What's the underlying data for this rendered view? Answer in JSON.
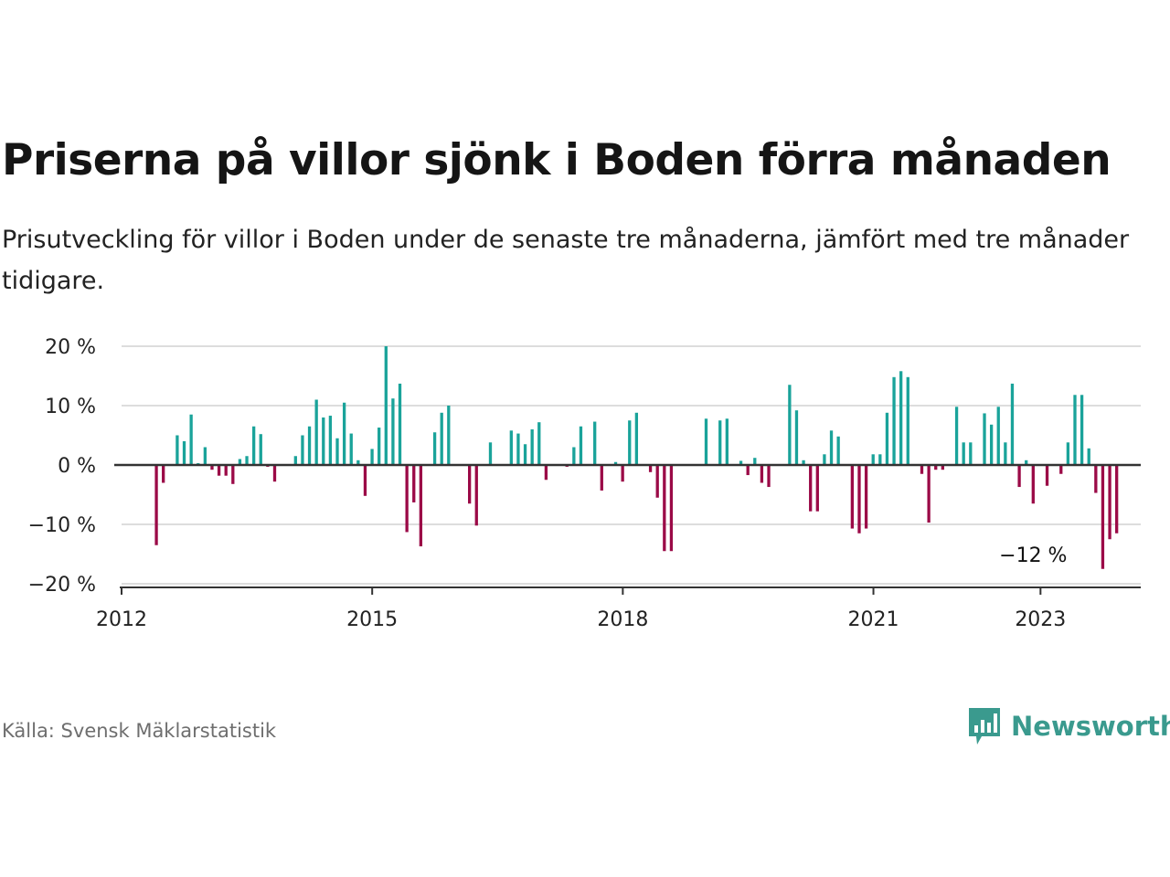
{
  "header": {
    "title": "Priserna på villor sjönk i Boden förra månaden",
    "subtitle": "Prisutveckling för villor i Boden under de senaste tre månaderna, jämfört med tre månader tidigare."
  },
  "footer": {
    "source": "Källa: Svensk Mäklarstatistik",
    "logo_text": "Newsworthy",
    "logo_icon": "bar-chart-speech-bubble-icon"
  },
  "colors": {
    "positive": "#1aa39a",
    "negative": "#9b0a47",
    "grid": "#dddddd",
    "zero_line": "#333333",
    "text": "#222222"
  },
  "chart_data": {
    "type": "bar",
    "title": "Priserna på villor sjönk i Boden förra månaden",
    "xlabel": "",
    "ylabel": "",
    "ylim": [
      -20,
      20
    ],
    "yticks": [
      20,
      10,
      0,
      -10,
      -20
    ],
    "ytick_labels": [
      "20 %",
      "10 %",
      "0 %",
      "−10 %",
      "−20 %"
    ],
    "xticks": [
      2012,
      2015,
      2018,
      2021,
      2023
    ],
    "xtick_labels": [
      "2012",
      "2015",
      "2018",
      "2021",
      "2023"
    ],
    "xlim": [
      2012.0,
      2024.2
    ],
    "start": 2012.0,
    "step": 0.0833,
    "values": [
      0,
      0,
      0,
      0,
      0,
      -13.5,
      -3,
      0,
      5,
      4,
      8.5,
      0.3,
      3,
      -0.8,
      -1.8,
      -1.8,
      -3.2,
      1,
      1.5,
      6.5,
      5.2,
      -0.3,
      -2.8,
      0,
      0,
      1.5,
      5,
      6.5,
      11,
      8,
      8.3,
      4.5,
      10.5,
      5.3,
      0.8,
      -5.2,
      2.7,
      6.3,
      20,
      11.2,
      13.7,
      -11.3,
      -6.3,
      -13.7,
      0,
      5.5,
      8.8,
      10,
      0,
      0,
      -6.5,
      -10.2,
      0,
      3.8,
      0,
      0,
      5.8,
      5.3,
      3.5,
      6,
      7.2,
      -2.5,
      0,
      0,
      -0.3,
      3,
      6.5,
      0,
      7.3,
      -4.3,
      0,
      0.5,
      -2.8,
      7.5,
      8.8,
      0,
      -1.2,
      -5.5,
      -14.5,
      -14.5,
      0,
      0,
      0,
      0,
      7.8,
      0,
      7.5,
      7.8,
      0,
      0.7,
      -1.7,
      1.2,
      -3,
      -3.7,
      0,
      0,
      13.5,
      9.2,
      0.8,
      -7.8,
      -7.8,
      1.8,
      5.8,
      4.8,
      0,
      -10.7,
      -11.5,
      -10.7,
      1.8,
      1.8,
      8.8,
      14.8,
      15.8,
      14.8,
      0,
      -1.5,
      -9.7,
      -0.8,
      -0.8,
      0,
      9.8,
      3.8,
      3.8,
      0,
      8.7,
      6.8,
      9.8,
      3.8,
      13.7,
      -3.7,
      0.8,
      -6.5,
      0,
      -3.5,
      0,
      -1.5,
      3.8,
      11.8,
      11.8,
      2.8,
      -4.7,
      -17.5,
      -12.5,
      -11.5
    ],
    "annotation": {
      "text": "−12 %",
      "index": 131,
      "value": -12
    }
  }
}
